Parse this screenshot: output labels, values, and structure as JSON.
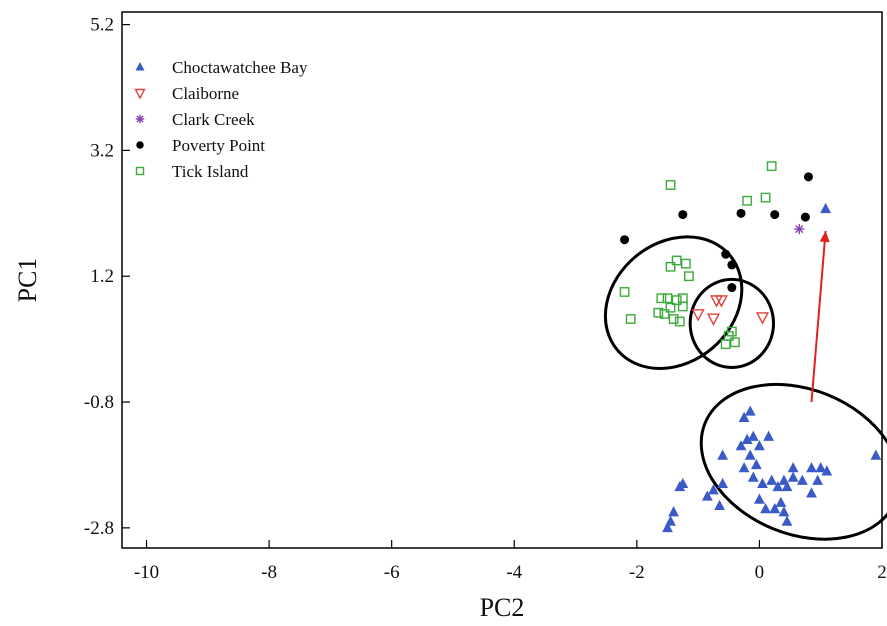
{
  "chart_data": {
    "type": "scatter",
    "xlabel": "PC2",
    "ylabel": "PC1",
    "xlim": [
      -10.4,
      2.0
    ],
    "ylim": [
      -3.12,
      5.4
    ],
    "x_ticks": [
      -10,
      -8,
      -6,
      -4,
      -2,
      0,
      2
    ],
    "x_tick_labels": [
      "-10",
      "-8",
      "-6",
      "-4",
      "-2",
      "0",
      "2"
    ],
    "y_ticks": [
      -2.8,
      -0.8,
      1.2,
      3.2,
      5.2
    ],
    "y_tick_labels": [
      "-2.8",
      "-0.8",
      "1.2",
      "3.2",
      "5.2"
    ],
    "grid": false,
    "legend_position": "top-left",
    "series": [
      {
        "name": "Choctawatchee Bay",
        "marker": "triangle-up",
        "color": "#3a5bc7",
        "points": [
          [
            -1.3,
            -2.15
          ],
          [
            -1.25,
            -2.1
          ],
          [
            -1.4,
            -2.55
          ],
          [
            -1.45,
            -2.7
          ],
          [
            -1.5,
            -2.8
          ],
          [
            -0.85,
            -2.3
          ],
          [
            -0.75,
            -2.2
          ],
          [
            -0.65,
            -2.45
          ],
          [
            -0.6,
            -2.1
          ],
          [
            -0.6,
            -1.65
          ],
          [
            -0.25,
            -1.05
          ],
          [
            -0.15,
            -0.95
          ],
          [
            -0.3,
            -1.5
          ],
          [
            -0.2,
            -1.4
          ],
          [
            -0.1,
            -1.35
          ],
          [
            0.0,
            -1.5
          ],
          [
            0.15,
            -1.35
          ],
          [
            -0.25,
            -1.85
          ],
          [
            -0.15,
            -1.65
          ],
          [
            -0.05,
            -1.8
          ],
          [
            -0.1,
            -2.0
          ],
          [
            0.05,
            -2.1
          ],
          [
            0.2,
            -2.05
          ],
          [
            0.3,
            -2.15
          ],
          [
            0.4,
            -2.05
          ],
          [
            0.45,
            -2.15
          ],
          [
            0.55,
            -2.0
          ],
          [
            0.55,
            -1.85
          ],
          [
            0.7,
            -2.05
          ],
          [
            0.85,
            -1.85
          ],
          [
            0.95,
            -2.05
          ],
          [
            1.0,
            -1.85
          ],
          [
            1.1,
            -1.9
          ],
          [
            0.85,
            -2.25
          ],
          [
            0.0,
            -2.35
          ],
          [
            0.1,
            -2.5
          ],
          [
            0.25,
            -2.5
          ],
          [
            0.35,
            -2.4
          ],
          [
            0.4,
            -2.55
          ],
          [
            0.45,
            -2.7
          ],
          [
            1.9,
            -1.65
          ],
          [
            1.08,
            2.27
          ]
        ]
      },
      {
        "name": "Claiborne",
        "marker": "triangle-down",
        "color": "#e0413a",
        "points": [
          [
            -0.7,
            0.82
          ],
          [
            -0.62,
            0.82
          ],
          [
            -1.0,
            0.6
          ],
          [
            -0.75,
            0.53
          ],
          [
            0.05,
            0.55
          ]
        ]
      },
      {
        "name": "Clark Creek",
        "marker": "asterisk",
        "color": "#8a3fb0",
        "points": [
          [
            0.65,
            1.95
          ]
        ]
      },
      {
        "name": "Poverty Point",
        "marker": "circle",
        "color": "#000000",
        "points": [
          [
            -2.2,
            1.78
          ],
          [
            -1.25,
            2.18
          ],
          [
            -0.3,
            2.2
          ],
          [
            -0.55,
            1.55
          ],
          [
            -0.45,
            1.38
          ],
          [
            -0.45,
            1.02
          ],
          [
            0.25,
            2.18
          ],
          [
            0.75,
            2.14
          ],
          [
            0.8,
            2.78
          ]
        ]
      },
      {
        "name": "Tick Island",
        "marker": "square-open",
        "color": "#3aaa3a",
        "points": [
          [
            -1.45,
            2.65
          ],
          [
            -1.45,
            1.35
          ],
          [
            -1.35,
            1.45
          ],
          [
            -1.2,
            1.4
          ],
          [
            -1.15,
            1.2
          ],
          [
            -1.6,
            0.85
          ],
          [
            -1.5,
            0.85
          ],
          [
            -1.45,
            0.7
          ],
          [
            -1.35,
            0.82
          ],
          [
            -1.25,
            0.72
          ],
          [
            -1.25,
            0.85
          ],
          [
            -1.55,
            0.6
          ],
          [
            -1.65,
            0.62
          ],
          [
            -1.4,
            0.52
          ],
          [
            -1.3,
            0.48
          ],
          [
            -2.1,
            0.52
          ],
          [
            -2.2,
            0.95
          ],
          [
            -0.5,
            0.25
          ],
          [
            -0.45,
            0.32
          ],
          [
            -0.4,
            0.15
          ],
          [
            -0.55,
            0.12
          ],
          [
            -0.2,
            2.4
          ],
          [
            0.1,
            2.45
          ],
          [
            0.2,
            2.95
          ]
        ]
      }
    ],
    "ellipses": [
      {
        "cx": -1.4,
        "cy": 0.78,
        "rx": 1.2,
        "ry": 0.95,
        "angle_deg": 40,
        "color": "#000000"
      },
      {
        "cx": -0.45,
        "cy": 0.45,
        "rx": 0.68,
        "ry": 0.7,
        "angle_deg": 0,
        "color": "#000000"
      },
      {
        "cx": 0.67,
        "cy": -1.75,
        "rx": 1.68,
        "ry": 1.15,
        "angle_deg": -22,
        "color": "#000000"
      }
    ],
    "arrow": {
      "from": [
        0.85,
        -0.8
      ],
      "to": [
        1.08,
        1.92
      ],
      "color": "#e02020"
    }
  }
}
